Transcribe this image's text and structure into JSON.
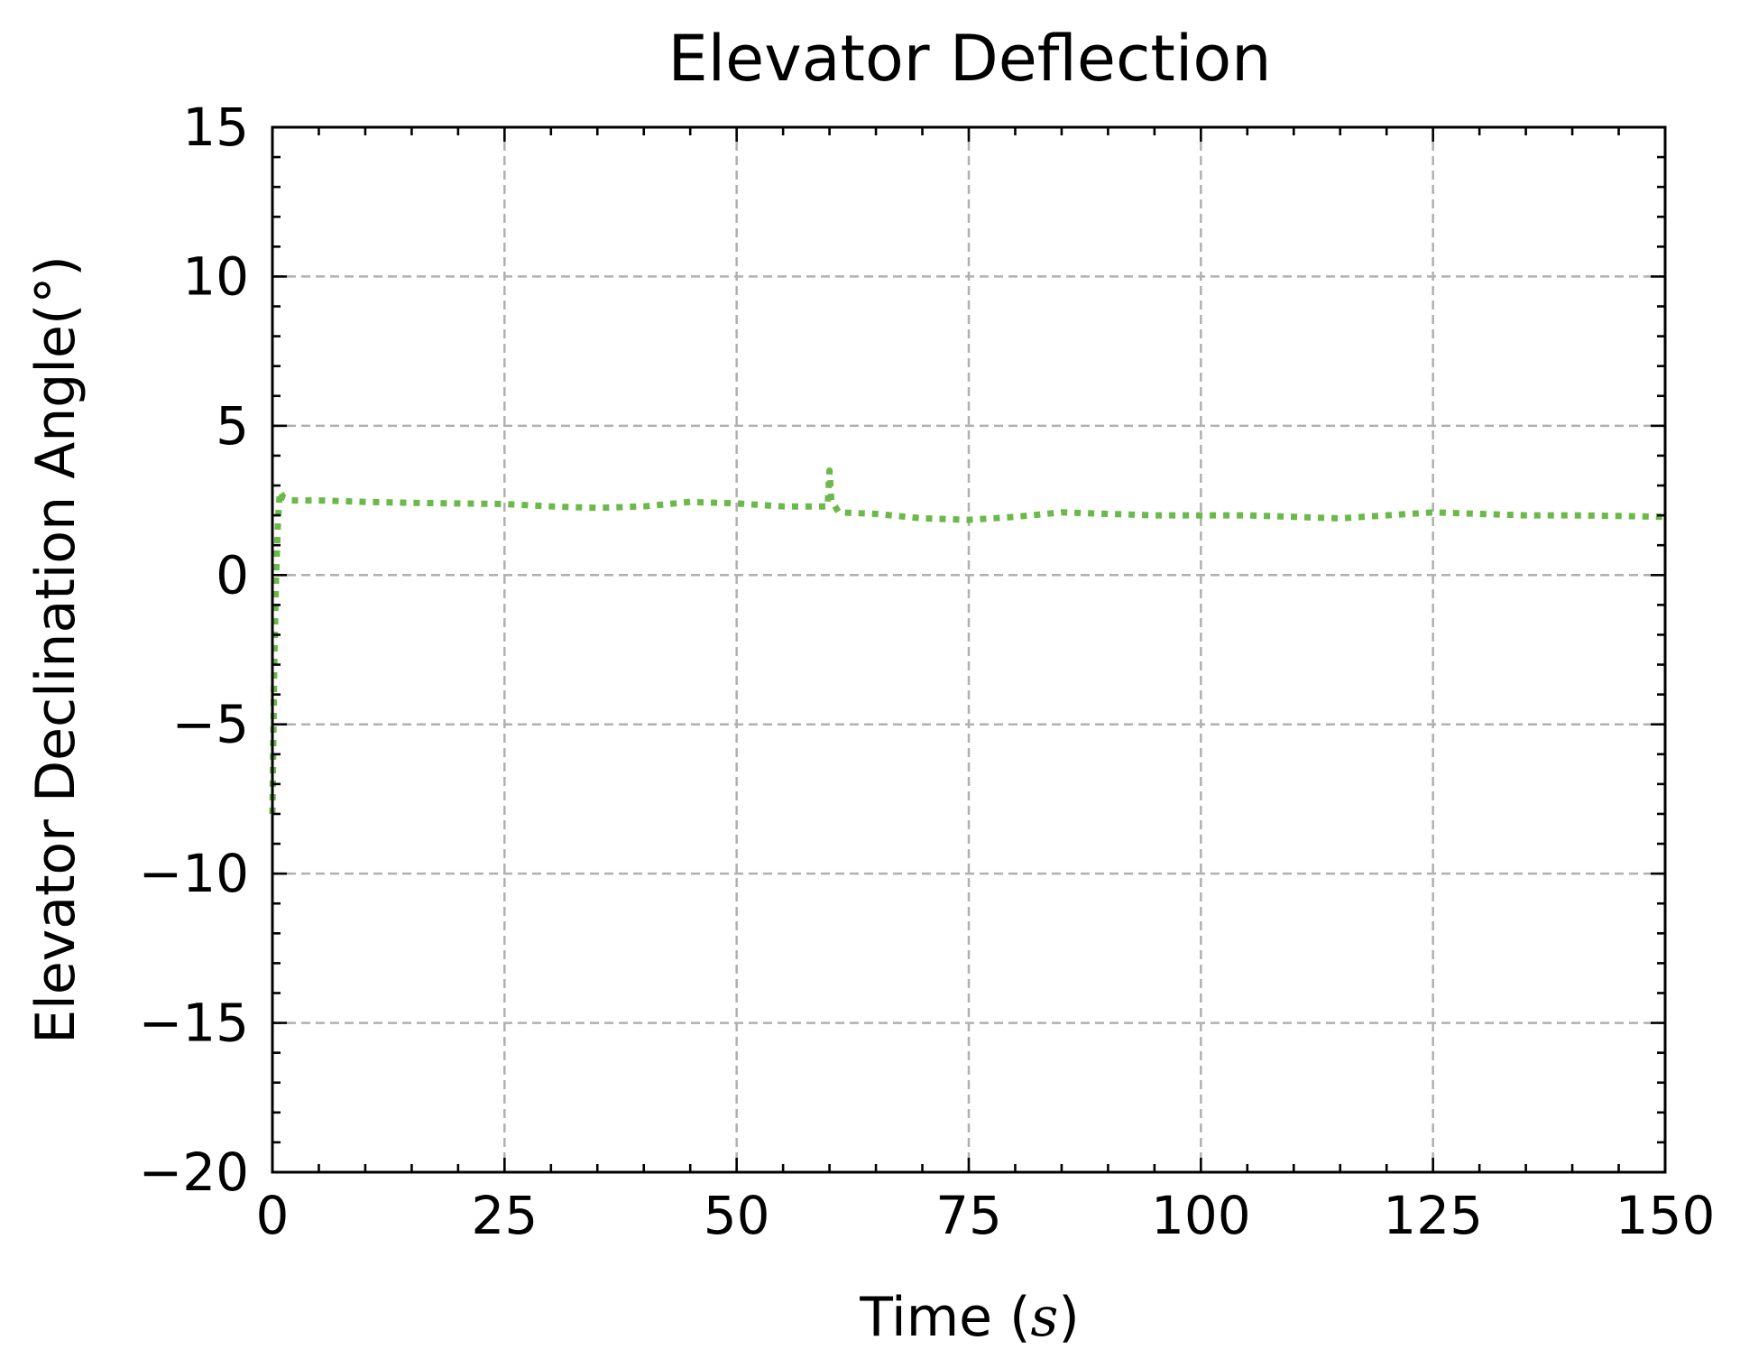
{
  "chart_data": {
    "type": "line",
    "title": "Elevator Deflection",
    "xlabel": "Time",
    "xlabel_unit": "s",
    "ylabel": "Elevator Declination Angle(°)",
    "xlim": [
      0,
      150
    ],
    "ylim": [
      -20,
      15
    ],
    "xticks": [
      0,
      25,
      50,
      75,
      100,
      125,
      150
    ],
    "xtick_labels": [
      "0",
      "25",
      "50",
      "75",
      "100",
      "125",
      "150"
    ],
    "yticks": [
      -20,
      -15,
      -10,
      -5,
      0,
      5,
      10,
      15
    ],
    "ytick_labels": [
      "−20",
      "−15",
      "−10",
      "−5",
      "0",
      "5",
      "10",
      "15"
    ],
    "grid": true,
    "series": [
      {
        "color": "#6ab94a",
        "style": "dotted",
        "x": [
          0,
          0.2,
          0.4,
          0.6,
          0.8,
          1.2,
          2,
          5,
          10,
          15,
          20,
          25,
          30,
          35,
          40,
          45,
          50,
          55,
          59.8,
          60,
          60.2,
          61,
          65,
          70,
          75,
          80,
          85,
          90,
          95,
          100,
          105,
          110,
          115,
          120,
          125,
          130,
          135,
          140,
          145,
          150
        ],
        "y": [
          -8,
          -3,
          0,
          1.8,
          2.8,
          2.6,
          2.5,
          2.5,
          2.45,
          2.42,
          2.4,
          2.38,
          2.3,
          2.25,
          2.3,
          2.45,
          2.4,
          2.3,
          2.3,
          3.5,
          2.5,
          2.1,
          2.05,
          1.9,
          1.85,
          1.95,
          2.1,
          2.05,
          2.0,
          2.0,
          2.0,
          1.95,
          1.9,
          2.0,
          2.1,
          2.05,
          2.0,
          2.0,
          1.98,
          1.95
        ]
      }
    ]
  }
}
